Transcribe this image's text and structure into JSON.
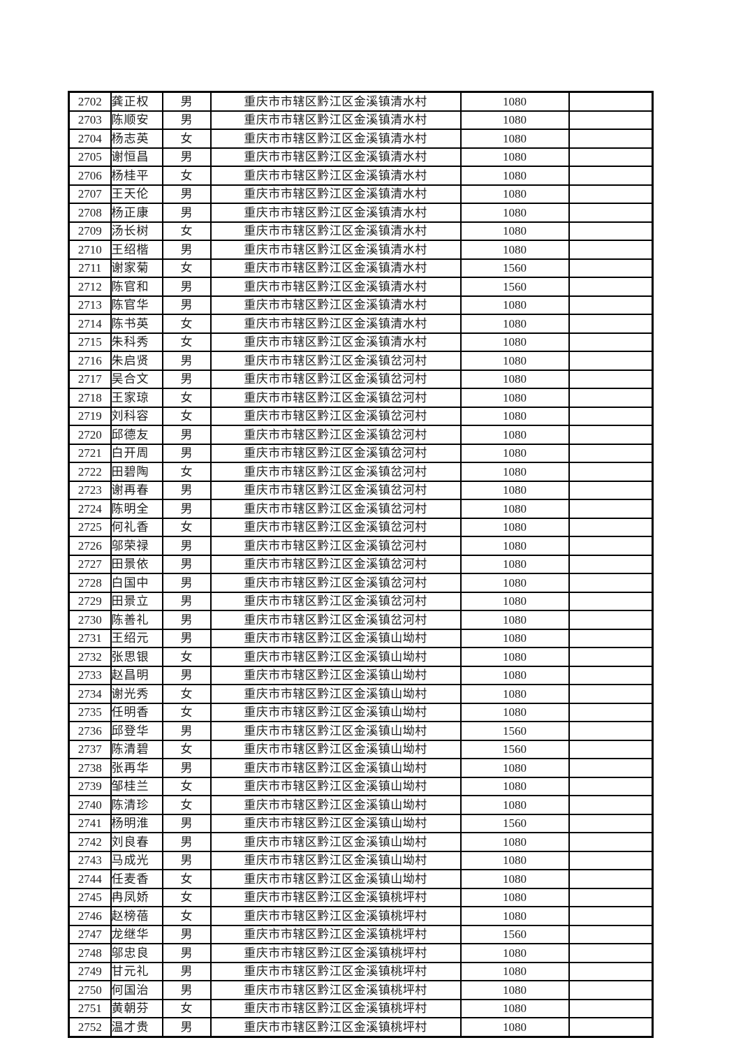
{
  "page": {
    "background": "#ffffff",
    "border_color": "#000000",
    "text_color": "#1c1c1c"
  },
  "table": {
    "fields": [
      "serial",
      "name",
      "gender",
      "address",
      "amount",
      "note"
    ],
    "rows": [
      [
        "2702",
        "龚正权",
        "男",
        "重庆市市辖区黔江区金溪镇清水村",
        "1080",
        ""
      ],
      [
        "2703",
        "陈顺安",
        "男",
        "重庆市市辖区黔江区金溪镇清水村",
        "1080",
        ""
      ],
      [
        "2704",
        "杨志英",
        "女",
        "重庆市市辖区黔江区金溪镇清水村",
        "1080",
        ""
      ],
      [
        "2705",
        "谢恒昌",
        "男",
        "重庆市市辖区黔江区金溪镇清水村",
        "1080",
        ""
      ],
      [
        "2706",
        "杨桂平",
        "女",
        "重庆市市辖区黔江区金溪镇清水村",
        "1080",
        ""
      ],
      [
        "2707",
        "王天伦",
        "男",
        "重庆市市辖区黔江区金溪镇清水村",
        "1080",
        ""
      ],
      [
        "2708",
        "杨正康",
        "男",
        "重庆市市辖区黔江区金溪镇清水村",
        "1080",
        ""
      ],
      [
        "2709",
        "汤长树",
        "女",
        "重庆市市辖区黔江区金溪镇清水村",
        "1080",
        ""
      ],
      [
        "2710",
        "王绍楷",
        "男",
        "重庆市市辖区黔江区金溪镇清水村",
        "1080",
        ""
      ],
      [
        "2711",
        "谢家菊",
        "女",
        "重庆市市辖区黔江区金溪镇清水村",
        "1560",
        ""
      ],
      [
        "2712",
        "陈官和",
        "男",
        "重庆市市辖区黔江区金溪镇清水村",
        "1560",
        ""
      ],
      [
        "2713",
        "陈官华",
        "男",
        "重庆市市辖区黔江区金溪镇清水村",
        "1080",
        ""
      ],
      [
        "2714",
        "陈书英",
        "女",
        "重庆市市辖区黔江区金溪镇清水村",
        "1080",
        ""
      ],
      [
        "2715",
        "朱科秀",
        "女",
        "重庆市市辖区黔江区金溪镇清水村",
        "1080",
        ""
      ],
      [
        "2716",
        "朱启贤",
        "男",
        "重庆市市辖区黔江区金溪镇岔河村",
        "1080",
        ""
      ],
      [
        "2717",
        "吴合文",
        "男",
        "重庆市市辖区黔江区金溪镇岔河村",
        "1080",
        ""
      ],
      [
        "2718",
        "王家琼",
        "女",
        "重庆市市辖区黔江区金溪镇岔河村",
        "1080",
        ""
      ],
      [
        "2719",
        "刘科容",
        "女",
        "重庆市市辖区黔江区金溪镇岔河村",
        "1080",
        ""
      ],
      [
        "2720",
        "邱德友",
        "男",
        "重庆市市辖区黔江区金溪镇岔河村",
        "1080",
        ""
      ],
      [
        "2721",
        "白开周",
        "男",
        "重庆市市辖区黔江区金溪镇岔河村",
        "1080",
        ""
      ],
      [
        "2722",
        "田碧陶",
        "女",
        "重庆市市辖区黔江区金溪镇岔河村",
        "1080",
        ""
      ],
      [
        "2723",
        "谢再春",
        "男",
        "重庆市市辖区黔江区金溪镇岔河村",
        "1080",
        ""
      ],
      [
        "2724",
        "陈明全",
        "男",
        "重庆市市辖区黔江区金溪镇岔河村",
        "1080",
        ""
      ],
      [
        "2725",
        "何礼香",
        "女",
        "重庆市市辖区黔江区金溪镇岔河村",
        "1080",
        ""
      ],
      [
        "2726",
        "邬荣禄",
        "男",
        "重庆市市辖区黔江区金溪镇岔河村",
        "1080",
        ""
      ],
      [
        "2727",
        "田景依",
        "男",
        "重庆市市辖区黔江区金溪镇岔河村",
        "1080",
        ""
      ],
      [
        "2728",
        "白国中",
        "男",
        "重庆市市辖区黔江区金溪镇岔河村",
        "1080",
        ""
      ],
      [
        "2729",
        "田景立",
        "男",
        "重庆市市辖区黔江区金溪镇岔河村",
        "1080",
        ""
      ],
      [
        "2730",
        "陈善礼",
        "男",
        "重庆市市辖区黔江区金溪镇岔河村",
        "1080",
        ""
      ],
      [
        "2731",
        "王绍元",
        "男",
        "重庆市市辖区黔江区金溪镇山坳村",
        "1080",
        ""
      ],
      [
        "2732",
        "张思银",
        "女",
        "重庆市市辖区黔江区金溪镇山坳村",
        "1080",
        ""
      ],
      [
        "2733",
        "赵昌明",
        "男",
        "重庆市市辖区黔江区金溪镇山坳村",
        "1080",
        ""
      ],
      [
        "2734",
        "谢光秀",
        "女",
        "重庆市市辖区黔江区金溪镇山坳村",
        "1080",
        ""
      ],
      [
        "2735",
        "任明香",
        "女",
        "重庆市市辖区黔江区金溪镇山坳村",
        "1080",
        ""
      ],
      [
        "2736",
        "邱登华",
        "男",
        "重庆市市辖区黔江区金溪镇山坳村",
        "1560",
        ""
      ],
      [
        "2737",
        "陈清碧",
        "女",
        "重庆市市辖区黔江区金溪镇山坳村",
        "1560",
        ""
      ],
      [
        "2738",
        "张再华",
        "男",
        "重庆市市辖区黔江区金溪镇山坳村",
        "1080",
        ""
      ],
      [
        "2739",
        "邹桂兰",
        "女",
        "重庆市市辖区黔江区金溪镇山坳村",
        "1080",
        ""
      ],
      [
        "2740",
        "陈清珍",
        "女",
        "重庆市市辖区黔江区金溪镇山坳村",
        "1080",
        ""
      ],
      [
        "2741",
        "杨明淮",
        "男",
        "重庆市市辖区黔江区金溪镇山坳村",
        "1560",
        ""
      ],
      [
        "2742",
        "刘良春",
        "男",
        "重庆市市辖区黔江区金溪镇山坳村",
        "1080",
        ""
      ],
      [
        "2743",
        "马成光",
        "男",
        "重庆市市辖区黔江区金溪镇山坳村",
        "1080",
        ""
      ],
      [
        "2744",
        "任麦香",
        "女",
        "重庆市市辖区黔江区金溪镇山坳村",
        "1080",
        ""
      ],
      [
        "2745",
        "冉凤娇",
        "女",
        "重庆市市辖区黔江区金溪镇桃坪村",
        "1080",
        ""
      ],
      [
        "2746",
        "赵榜蓓",
        "女",
        "重庆市市辖区黔江区金溪镇桃坪村",
        "1080",
        ""
      ],
      [
        "2747",
        "龙继华",
        "男",
        "重庆市市辖区黔江区金溪镇桃坪村",
        "1560",
        ""
      ],
      [
        "2748",
        "邬忠良",
        "男",
        "重庆市市辖区黔江区金溪镇桃坪村",
        "1080",
        ""
      ],
      [
        "2749",
        "甘元礼",
        "男",
        "重庆市市辖区黔江区金溪镇桃坪村",
        "1080",
        ""
      ],
      [
        "2750",
        "何国治",
        "男",
        "重庆市市辖区黔江区金溪镇桃坪村",
        "1080",
        ""
      ],
      [
        "2751",
        "黄朝芬",
        "女",
        "重庆市市辖区黔江区金溪镇桃坪村",
        "1080",
        ""
      ],
      [
        "2752",
        "温才贵",
        "男",
        "重庆市市辖区黔江区金溪镇桃坪村",
        "1080",
        ""
      ]
    ]
  }
}
